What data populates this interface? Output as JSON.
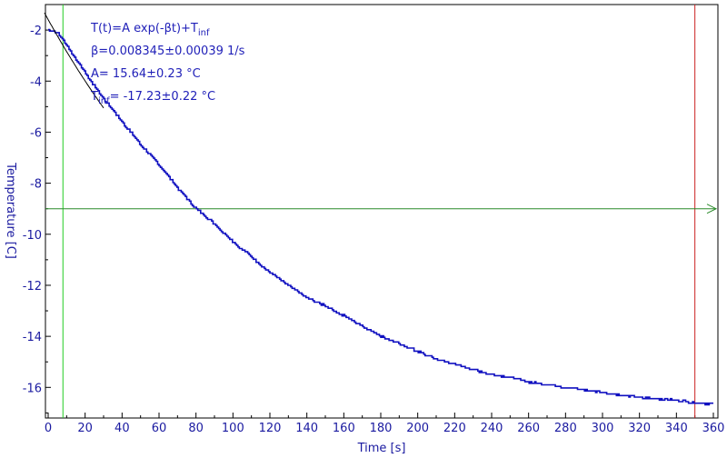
{
  "chart_data": {
    "type": "line",
    "xlabel": "Time [s]",
    "ylabel": "Temperature [C]",
    "xlim": [
      0,
      360
    ],
    "ylim": [
      -17.2,
      -1.0
    ],
    "x_ticks": [
      0,
      20,
      40,
      60,
      80,
      100,
      120,
      140,
      160,
      180,
      200,
      220,
      240,
      260,
      280,
      300,
      320,
      340,
      360
    ],
    "y_ticks": [
      -2,
      -4,
      -6,
      -8,
      -10,
      -12,
      -14,
      -16
    ],
    "grid": false,
    "annotations": {
      "model_prefix": "T(t)=A exp(-βt)+T",
      "model_sub": "inf",
      "beta": "β=0.008345±0.00039 1/s",
      "amplitude": "A= 15.64±0.23 °C",
      "tinf_prefix": "T",
      "tinf_sub": "inf",
      "tinf_value": "= -17.23±0.22 °C"
    },
    "fit": {
      "A": 15.64,
      "beta": 0.008345,
      "T_inf": -17.23,
      "start_offset": 5
    },
    "series": [
      {
        "color": "#1010c0",
        "x": [
          0,
          5,
          10,
          20,
          30,
          40,
          50,
          60,
          70,
          80,
          90,
          100,
          110,
          120,
          130,
          140,
          150,
          160,
          170,
          180,
          190,
          200,
          210,
          220,
          230,
          240,
          250,
          260,
          270,
          280,
          290,
          300,
          310,
          320,
          330,
          340,
          350,
          360
        ],
        "y": [
          -2.0,
          -2.1,
          -2.6,
          -3.7,
          -4.7,
          -5.6,
          -6.5,
          -7.3,
          -8.2,
          -9.0,
          -9.6,
          -10.3,
          -10.9,
          -11.5,
          -12.0,
          -12.5,
          -12.8,
          -13.2,
          -13.6,
          -14.0,
          -14.3,
          -14.6,
          -14.9,
          -15.1,
          -15.3,
          -15.5,
          -15.6,
          -15.8,
          -15.9,
          -16.0,
          -16.1,
          -16.2,
          -16.3,
          -16.4,
          -16.45,
          -16.5,
          -16.6,
          -16.65
        ]
      }
    ],
    "markers": {
      "vertical_green_x": 8,
      "vertical_red_x": 350,
      "horizontal_green_y": -9.0,
      "green_color": "#22cc22",
      "red_color": "#cc2222",
      "hline_color": "#2a8a2a"
    },
    "colors": {
      "axis": "#000000",
      "text": "#1a1aa0",
      "fit_line": "#000000"
    }
  }
}
